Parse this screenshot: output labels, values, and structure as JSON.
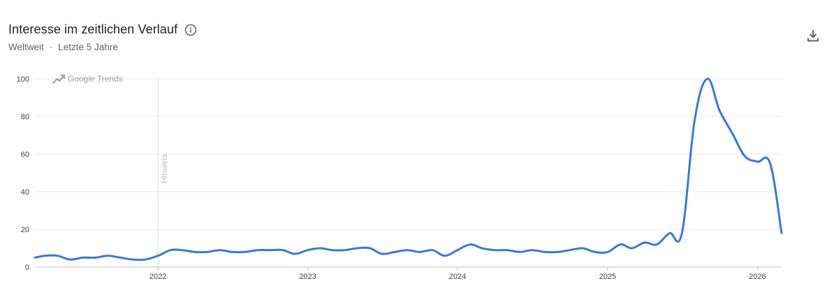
{
  "header": {
    "title": "Interesse im zeitlichen Verlauf",
    "region": "Weltweit",
    "separator": "·",
    "period": "Letzte 5 Jahre",
    "info_icon": "info-icon",
    "download_icon": "download-icon"
  },
  "watermark": "Google Trends",
  "annotation": {
    "label": "Hinweis",
    "x": "2022-01-01"
  },
  "colors": {
    "line": "#3a78d8",
    "grid": "#e8eaed",
    "axis": "#bdc1c6",
    "text": "#3c4043"
  },
  "chart_data": {
    "type": "line",
    "title": "Interesse im zeitlichen Verlauf",
    "xlabel": "",
    "ylabel": "",
    "ylim": [
      0,
      100
    ],
    "yticks": [
      0,
      20,
      40,
      60,
      80,
      100
    ],
    "xticks": [
      "2022",
      "2023",
      "2024",
      "2025",
      "2026"
    ],
    "xlim": [
      "2021-03-07",
      "2026-03-01"
    ],
    "grid": true,
    "x": [
      "2021-03-07",
      "2021-04-01",
      "2021-05-01",
      "2021-06-01",
      "2021-07-01",
      "2021-08-01",
      "2021-09-01",
      "2021-10-01",
      "2021-11-01",
      "2021-12-01",
      "2022-01-01",
      "2022-02-01",
      "2022-03-01",
      "2022-04-01",
      "2022-05-01",
      "2022-06-01",
      "2022-07-01",
      "2022-08-01",
      "2022-09-01",
      "2022-10-01",
      "2022-11-01",
      "2022-12-01",
      "2023-01-01",
      "2023-02-01",
      "2023-03-01",
      "2023-04-01",
      "2023-05-01",
      "2023-06-01",
      "2023-07-01",
      "2023-08-01",
      "2023-09-01",
      "2023-10-01",
      "2023-11-01",
      "2023-12-01",
      "2024-01-01",
      "2024-02-01",
      "2024-03-01",
      "2024-04-01",
      "2024-05-01",
      "2024-06-01",
      "2024-07-01",
      "2024-08-01",
      "2024-09-01",
      "2024-10-01",
      "2024-11-01",
      "2024-12-01",
      "2025-01-01",
      "2025-02-01",
      "2025-03-01",
      "2025-04-01",
      "2025-05-01",
      "2025-06-01",
      "2025-07-01",
      "2025-08-01",
      "2025-09-01",
      "2025-10-01",
      "2025-11-01",
      "2025-12-01",
      "2026-01-01",
      "2026-02-01",
      "2026-03-01"
    ],
    "series": [
      {
        "values": [
          5,
          6,
          6,
          4,
          5,
          5,
          6,
          5,
          4,
          4,
          6,
          9,
          9,
          8,
          8,
          9,
          8,
          8,
          9,
          9,
          9,
          7,
          9,
          10,
          9,
          9,
          10,
          10,
          7,
          8,
          9,
          8,
          9,
          6,
          9,
          12,
          10,
          9,
          9,
          8,
          9,
          8,
          8,
          9,
          10,
          8,
          8,
          12,
          10,
          13,
          12,
          18,
          18,
          78,
          100,
          83,
          71,
          59,
          56,
          55,
          18
        ]
      }
    ]
  }
}
